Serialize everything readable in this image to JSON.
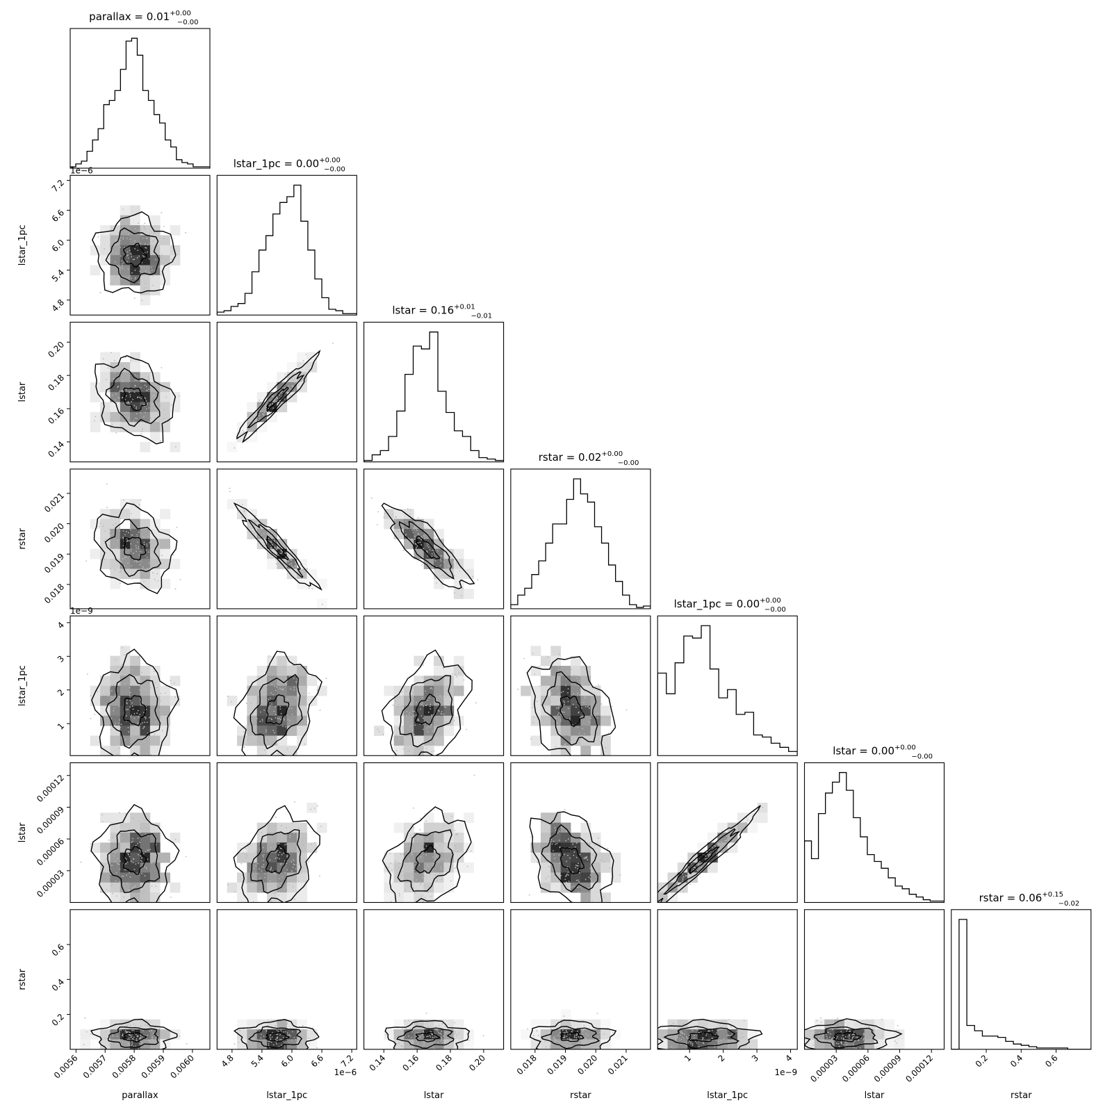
{
  "chart_data": {
    "type": "corner",
    "parameters": [
      {
        "name": "parallax",
        "range": [
          0.00558,
          0.00606
        ],
        "ticks": [
          "0.0056",
          "0.0057",
          "0.0058",
          "0.0059",
          "0.0060"
        ],
        "tick_values": [
          0.0056,
          0.0057,
          0.0058,
          0.0059,
          0.006
        ],
        "offset": "",
        "offset_y": "",
        "title": {
          "main": "parallax = 0.01",
          "sup": "+0.00",
          "sub": "−0.00"
        },
        "center": 0.0058,
        "spread": 6e-05,
        "hist": [
          1,
          3,
          5,
          12,
          20,
          28,
          45,
          48,
          55,
          70,
          90,
          92,
          80,
          55,
          48,
          38,
          32,
          20,
          15,
          6,
          4,
          3,
          1,
          1,
          1
        ]
      },
      {
        "name": "lstar_1pc",
        "range": [
          4.5,
          7.3
        ],
        "ticks": [
          "4.8",
          "5.4",
          "6.0",
          "6.6",
          "7.2"
        ],
        "tick_values": [
          4.8,
          5.4,
          6.0,
          6.6,
          7.2
        ],
        "offset": "1e−6",
        "offset_y": "1e−6",
        "title": {
          "main": "lstar_1pc = 0.00",
          "sup": "+0.00",
          "sub": "−0.00"
        },
        "center": 5.7,
        "spread": 0.35,
        "hist": [
          2,
          3,
          6,
          8,
          15,
          30,
          45,
          55,
          70,
          78,
          82,
          90,
          65,
          45,
          25,
          12,
          4,
          3,
          1,
          1
        ]
      },
      {
        "name": "lstar",
        "range": [
          0.128,
          0.212
        ],
        "ticks": [
          "0.14",
          "0.16",
          "0.18",
          "0.20"
        ],
        "tick_values": [
          0.14,
          0.16,
          0.18,
          0.2
        ],
        "offset": "",
        "offset_y": "",
        "title": {
          "main": "lstar = 0.16",
          "sup": "+0.01",
          "sub": "−0.01"
        },
        "center": 0.166,
        "spread": 0.011,
        "hist": [
          1,
          5,
          8,
          18,
          36,
          62,
          82,
          80,
          92,
          50,
          35,
          22,
          18,
          8,
          3,
          2,
          1
        ]
      },
      {
        "name": "rstar",
        "range": [
          0.0172,
          0.0218
        ],
        "ticks": [
          "0.018",
          "0.019",
          "0.020",
          "0.021"
        ],
        "tick_values": [
          0.018,
          0.019,
          0.02,
          0.021
        ],
        "offset": "",
        "offset_y": "",
        "title": {
          "main": "rstar = 0.02",
          "sup": "+0.00",
          "sub": "−0.00"
        },
        "center": 0.0192,
        "spread": 0.0006,
        "hist": [
          3,
          10,
          15,
          25,
          35,
          48,
          62,
          62,
          80,
          95,
          84,
          78,
          60,
          48,
          32,
          20,
          10,
          3,
          1,
          2
        ]
      },
      {
        "name": "lstar_1pc",
        "range": [
          0.05,
          4.2
        ],
        "ticks": [
          "1",
          "2",
          "3",
          "4"
        ],
        "tick_values": [
          1,
          2,
          3,
          4
        ],
        "offset": "1e−9",
        "offset_y": "1e−9",
        "title": {
          "main": "lstar_1pc = 0.00",
          "sup": "+0.00",
          "sub": "−0.00"
        },
        "center": 1.4,
        "spread": 0.7,
        "hist": [
          40,
          30,
          45,
          58,
          57,
          63,
          42,
          28,
          32,
          20,
          21,
          10,
          9,
          6,
          4,
          2
        ]
      },
      {
        "name": "lstar",
        "range": [
          0.0,
          0.000132
        ],
        "ticks": [
          "0.00003",
          "0.00006",
          "0.00009",
          "0.00012"
        ],
        "tick_values": [
          3e-05,
          6e-05,
          9e-05,
          0.00012
        ],
        "offset": "",
        "offset_y": "",
        "title": {
          "main": "lstar = 0.00",
          "sup": "+0.00",
          "sub": "−0.00"
        },
        "center": 4e-05,
        "spread": 2e-05,
        "hist": [
          45,
          32,
          65,
          80,
          88,
          95,
          82,
          62,
          48,
          35,
          30,
          25,
          18,
          12,
          10,
          6,
          4,
          2,
          1,
          1
        ]
      },
      {
        "name": "rstar",
        "range": [
          0.0,
          0.8
        ],
        "ticks": [
          "0.2",
          "0.4",
          "0.6"
        ],
        "tick_values": [
          0.2,
          0.4,
          0.6
        ],
        "offset": "",
        "offset_y": "",
        "title": {
          "main": "rstar = 0.06",
          "sup": "+0.15",
          "sub": "−0.02"
        },
        "center": 0.07,
        "spread": 0.04,
        "hist": [
          0,
          98,
          18,
          14,
          10,
          10,
          9,
          6,
          4,
          3,
          2,
          1,
          1,
          1,
          1,
          0,
          0,
          0
        ]
      }
    ],
    "correlations": [
      [
        1.0,
        0.0,
        -0.3,
        -0.2,
        0.0,
        0.0,
        0.0
      ],
      [
        0.0,
        1.0,
        0.95,
        -0.95,
        0.3,
        0.3,
        0.0
      ],
      [
        -0.3,
        0.95,
        1.0,
        -0.85,
        0.35,
        0.35,
        0.0
      ],
      [
        -0.2,
        -0.95,
        -0.85,
        1.0,
        -0.3,
        -0.35,
        0.0
      ],
      [
        0.0,
        0.3,
        0.35,
        -0.3,
        1.0,
        0.97,
        0.0
      ],
      [
        0.0,
        0.3,
        0.35,
        -0.35,
        0.97,
        1.0,
        0.0
      ],
      [
        0.0,
        0.0,
        0.0,
        0.0,
        0.0,
        0.0,
        1.0
      ]
    ],
    "title": "",
    "grid": false,
    "legend": false
  }
}
